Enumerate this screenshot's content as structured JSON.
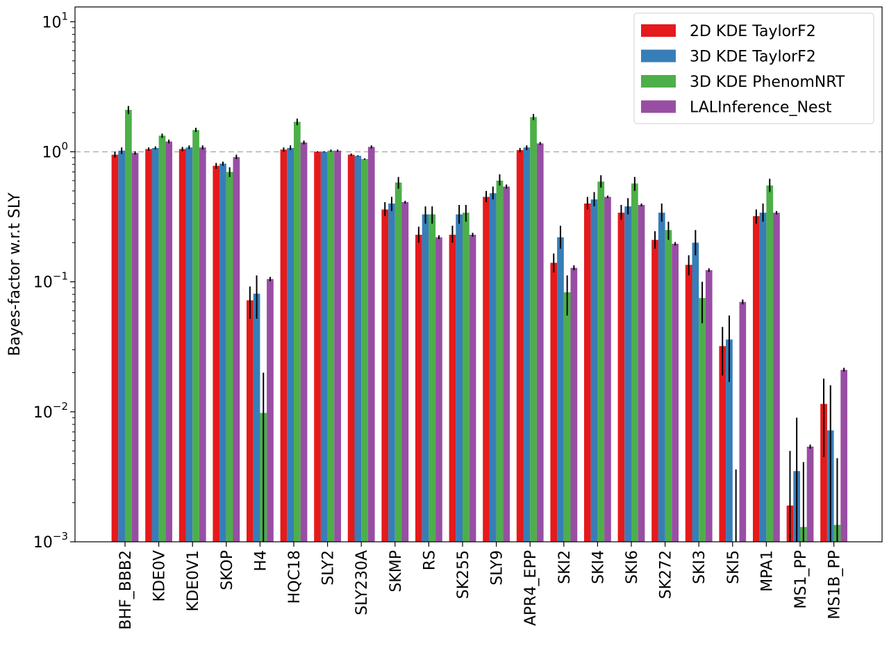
{
  "chart_data": {
    "type": "bar",
    "title": "",
    "xlabel": "",
    "ylabel": "Bayes-factor w.r.t SLY",
    "yscale": "log",
    "ylim": [
      0.001,
      13
    ],
    "yticks": [
      {
        "value": 0.001,
        "base": "10",
        "exp": "−3"
      },
      {
        "value": 0.01,
        "base": "10",
        "exp": "−2"
      },
      {
        "value": 0.1,
        "base": "10",
        "exp": "−1"
      },
      {
        "value": 1,
        "base": "10",
        "exp": "0"
      },
      {
        "value": 10,
        "base": "10",
        "exp": "1"
      }
    ],
    "reference_line": 1,
    "legend_position": "top-right",
    "categories": [
      "BHF_BBB2",
      "KDE0V",
      "KDE0V1",
      "SKOP",
      "H4",
      "HQC18",
      "SLY2",
      "SLY230A",
      "SKMP",
      "RS",
      "SK255",
      "SLY9",
      "APR4_EPP",
      "SKI2",
      "SKI4",
      "SKI6",
      "SK272",
      "SKI3",
      "SKI5",
      "MPA1",
      "MS1_PP",
      "MS1B_PP"
    ],
    "series": [
      {
        "name": "2D KDE TaylorF2",
        "color": "#e41a1c",
        "values": [
          0.95,
          1.05,
          1.05,
          0.78,
          0.072,
          1.04,
          1.0,
          0.95,
          0.36,
          0.23,
          0.23,
          0.45,
          1.03,
          0.14,
          0.4,
          0.34,
          0.21,
          0.135,
          0.032,
          0.32,
          0.0019,
          0.0115
        ],
        "err_low": [
          0.9,
          1.02,
          1.01,
          0.74,
          0.052,
          1.0,
          0.99,
          0.93,
          0.32,
          0.2,
          0.2,
          0.41,
          0.99,
          0.118,
          0.36,
          0.3,
          0.18,
          0.112,
          0.019,
          0.28,
          0.0009,
          0.0045
        ],
        "err_high": [
          1.0,
          1.08,
          1.09,
          0.82,
          0.092,
          1.08,
          1.01,
          0.97,
          0.41,
          0.265,
          0.27,
          0.5,
          1.07,
          0.165,
          0.45,
          0.39,
          0.245,
          0.16,
          0.045,
          0.36,
          0.005,
          0.018
        ]
      },
      {
        "name": "3D KDE TaylorF2",
        "color": "#377eb8",
        "values": [
          1.02,
          1.07,
          1.08,
          0.81,
          0.081,
          1.07,
          1.0,
          0.93,
          0.4,
          0.33,
          0.33,
          0.48,
          1.08,
          0.22,
          0.43,
          0.38,
          0.34,
          0.2,
          0.036,
          0.34,
          0.0035,
          0.0072
        ],
        "err_low": [
          0.96,
          1.04,
          1.05,
          0.78,
          0.052,
          1.03,
          0.99,
          0.92,
          0.35,
          0.28,
          0.28,
          0.43,
          1.03,
          0.18,
          0.38,
          0.33,
          0.29,
          0.16,
          0.017,
          0.29,
          0.001,
          0.001
        ],
        "err_high": [
          1.08,
          1.1,
          1.12,
          0.84,
          0.112,
          1.12,
          1.01,
          0.94,
          0.45,
          0.38,
          0.39,
          0.54,
          1.12,
          0.27,
          0.49,
          0.44,
          0.4,
          0.25,
          0.055,
          0.4,
          0.009,
          0.016
        ]
      },
      {
        "name": "3D KDE PhenomNRT",
        "color": "#4daf4a",
        "values": [
          2.1,
          1.33,
          1.47,
          0.7,
          0.0098,
          1.7,
          1.02,
          0.88,
          0.58,
          0.33,
          0.34,
          0.6,
          1.85,
          0.083,
          0.59,
          0.57,
          0.25,
          0.075,
          0.0009,
          0.55,
          0.0013,
          0.00135
        ],
        "err_low": [
          1.95,
          1.28,
          1.42,
          0.64,
          0.001,
          1.6,
          1.0,
          0.87,
          0.52,
          0.28,
          0.29,
          0.55,
          1.75,
          0.055,
          0.53,
          0.5,
          0.21,
          0.048,
          0.001,
          0.49,
          0.001,
          0.001
        ],
        "err_high": [
          2.25,
          1.38,
          1.53,
          0.76,
          0.02,
          1.8,
          1.04,
          0.89,
          0.64,
          0.38,
          0.39,
          0.67,
          1.95,
          0.112,
          0.66,
          0.64,
          0.29,
          0.1,
          0.0036,
          0.62,
          0.0041,
          0.0044
        ]
      },
      {
        "name": "LALInference_Nest",
        "color": "#984ea3",
        "values": [
          0.98,
          1.2,
          1.08,
          0.91,
          0.105,
          1.18,
          1.02,
          1.09,
          0.41,
          0.22,
          0.23,
          0.54,
          1.16,
          0.128,
          0.45,
          0.39,
          0.196,
          0.123,
          0.07,
          0.34,
          0.0054,
          0.021
        ],
        "err_low": [
          0.95,
          1.16,
          1.04,
          0.88,
          0.101,
          1.14,
          1.0,
          1.06,
          0.4,
          0.213,
          0.222,
          0.52,
          1.13,
          0.123,
          0.44,
          0.38,
          0.19,
          0.119,
          0.067,
          0.33,
          0.0052,
          0.0204
        ],
        "err_high": [
          1.01,
          1.24,
          1.12,
          0.95,
          0.109,
          1.22,
          1.04,
          1.12,
          0.42,
          0.228,
          0.238,
          0.56,
          1.19,
          0.134,
          0.46,
          0.4,
          0.202,
          0.127,
          0.073,
          0.35,
          0.0056,
          0.0218
        ]
      }
    ]
  }
}
